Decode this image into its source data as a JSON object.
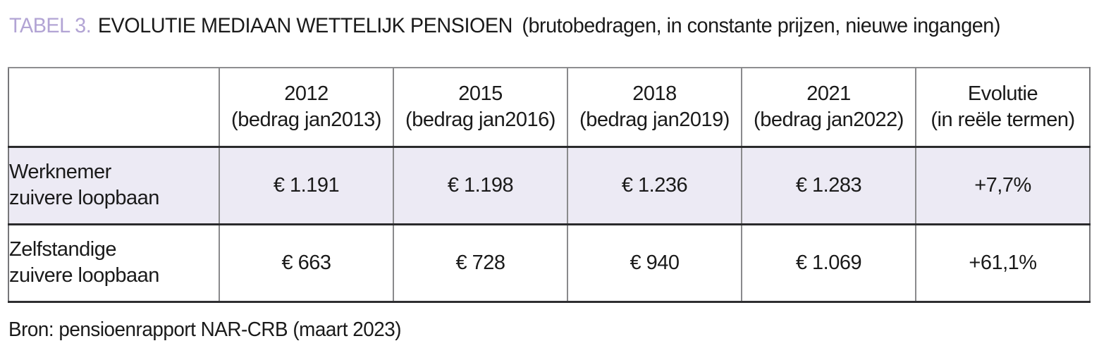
{
  "page": {
    "title": {
      "tag": "TABEL 3.",
      "heading": "EVOLUTIE MEDIAAN WETTELIJK PENSIOEN",
      "subtitle": "(brutobedragen, in constante prijzen, nieuwe ingangen)"
    },
    "source": "Bron: pensioenrapport NAR-CRB (maart 2023)"
  },
  "table": {
    "columns": [
      {
        "year": "2012",
        "note": "(bedrag jan2013)"
      },
      {
        "year": "2015",
        "note": "(bedrag jan2016)"
      },
      {
        "year": "2018",
        "note": "(bedrag jan2019)"
      },
      {
        "year": "2021",
        "note": "(bedrag jan2022)"
      },
      {
        "year": "Evolutie",
        "note": "(in reële termen)"
      }
    ],
    "rows": [
      {
        "label_line1": "Werknemer",
        "label_line2": "zuivere loopbaan",
        "values": [
          "€ 1.191",
          "€ 1.198",
          "€ 1.236",
          "€ 1.283",
          "+7,7%"
        ]
      },
      {
        "label_line1": "Zelfstandige",
        "label_line2": "zuivere loopbaan",
        "values": [
          "€ 663",
          "€ 728",
          "€ 940",
          "€ 1.069",
          "+61,1%"
        ]
      }
    ]
  },
  "colors": {
    "accent_purple": "#b2a4d4",
    "highlight_row": "#eceaf4",
    "text": "#1a1a1a"
  }
}
